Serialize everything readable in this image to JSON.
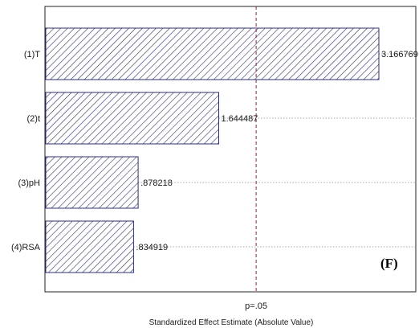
{
  "chart_data": {
    "type": "bar",
    "orientation": "horizontal",
    "categories": [
      "(1)T",
      "(2)t",
      "(3)pH",
      "(4)RSA"
    ],
    "values": [
      3.166769,
      1.644487,
      0.878218,
      0.834919
    ],
    "value_labels": [
      "3.166769",
      "1.644487",
      ".878218",
      ".834919"
    ],
    "xlabel": "Standardized Effect Estimate (Absolute Value)",
    "ylabel": "",
    "xlim": [
      0,
      3.6
    ],
    "reference_line": {
      "value": 2.0,
      "label": "p=.05"
    },
    "panel_label": "(F)",
    "grid": "horizontal dotted guide lines per bar",
    "colors": {
      "bar_stroke": "#2b2f7a",
      "bar_hatch": "#2b2f7a",
      "reference_line": "#9b1c3a",
      "frame": "#222222"
    }
  }
}
